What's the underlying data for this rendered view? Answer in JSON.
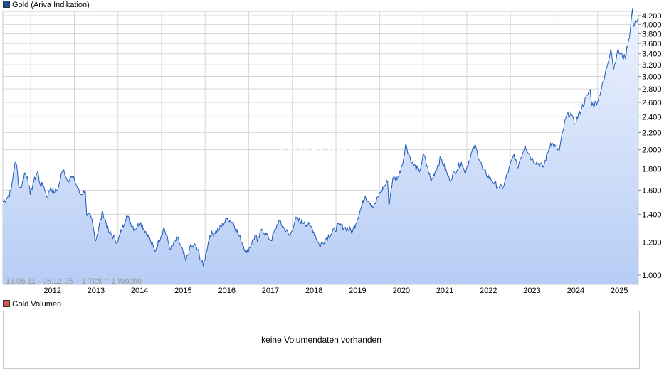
{
  "price_legend": {
    "label": "Gold (Ariva Indikation)",
    "color": "#1f4e9e"
  },
  "volume_legend": {
    "label": "Gold Volumen",
    "color": "#d9534f"
  },
  "watermark": "ARIVA.DE",
  "range_info": "13.05.11 - 08.12.25    1 Tick = 1 Woche",
  "volume_message": "keine Volumendaten vorhanden",
  "colors": {
    "line": "#1f5bb8",
    "fill_top": "#eef3fe",
    "fill_bottom": "#b7cdf5",
    "grid": "#d6d6d6"
  },
  "chart_data": {
    "type": "area",
    "scale": "log",
    "ylim": [
      950,
      4300
    ],
    "y_ticks": [
      1000,
      1200,
      1400,
      1600,
      1800,
      2000,
      2200,
      2400,
      2600,
      2800,
      3000,
      3200,
      3400,
      3600,
      3800,
      4000,
      4200
    ],
    "y_tick_labels": [
      "1.000",
      "1.200",
      "1.400",
      "1.600",
      "1.800",
      "2.000",
      "2.200",
      "2.400",
      "2.600",
      "2.800",
      "3.000",
      "3.200",
      "3.400",
      "3.600",
      "3.800",
      "4.000",
      "4.200"
    ],
    "x_tick_labels": [
      "2012",
      "2013",
      "2014",
      "2015",
      "2016",
      "2017",
      "2018",
      "2019",
      "2020",
      "2021",
      "2022",
      "2023",
      "2024",
      "2025"
    ],
    "x_range": [
      "2011-05-13",
      "2025-12-08"
    ],
    "series": [
      {
        "values": [
          [
            "2011-05-13",
            1500
          ],
          [
            "2011-06-15",
            1530
          ],
          [
            "2011-07-20",
            1590
          ],
          [
            "2011-08-10",
            1760
          ],
          [
            "2011-08-22",
            1860
          ],
          [
            "2011-09-05",
            1840
          ],
          [
            "2011-09-26",
            1620
          ],
          [
            "2011-10-20",
            1640
          ],
          [
            "2011-11-10",
            1760
          ],
          [
            "2011-12-05",
            1720
          ],
          [
            "2011-12-29",
            1560
          ],
          [
            "2012-01-20",
            1660
          ],
          [
            "2012-02-28",
            1770
          ],
          [
            "2012-03-20",
            1650
          ],
          [
            "2012-04-20",
            1640
          ],
          [
            "2012-05-16",
            1540
          ],
          [
            "2012-06-15",
            1620
          ],
          [
            "2012-07-20",
            1580
          ],
          [
            "2012-08-20",
            1620
          ],
          [
            "2012-09-20",
            1770
          ],
          [
            "2012-10-05",
            1790
          ],
          [
            "2012-11-05",
            1680
          ],
          [
            "2012-11-28",
            1730
          ],
          [
            "2013-01-02",
            1690
          ],
          [
            "2013-02-20",
            1560
          ],
          [
            "2013-04-02",
            1600
          ],
          [
            "2013-04-15",
            1390
          ],
          [
            "2013-05-20",
            1380
          ],
          [
            "2013-06-28",
            1210
          ],
          [
            "2013-08-27",
            1420
          ],
          [
            "2013-10-15",
            1270
          ],
          [
            "2013-12-30",
            1200
          ],
          [
            "2014-03-14",
            1390
          ],
          [
            "2014-05-20",
            1290
          ],
          [
            "2014-07-10",
            1340
          ],
          [
            "2014-09-30",
            1210
          ],
          [
            "2014-11-07",
            1140
          ],
          [
            "2015-01-22",
            1300
          ],
          [
            "2015-03-17",
            1150
          ],
          [
            "2015-05-15",
            1230
          ],
          [
            "2015-07-24",
            1080
          ],
          [
            "2015-08-24",
            1160
          ],
          [
            "2015-10-14",
            1180
          ],
          [
            "2015-12-17",
            1050
          ],
          [
            "2016-02-11",
            1250
          ],
          [
            "2016-04-29",
            1290
          ],
          [
            "2016-07-06",
            1370
          ],
          [
            "2016-08-20",
            1340
          ],
          [
            "2016-10-07",
            1250
          ],
          [
            "2016-12-15",
            1130
          ],
          [
            "2017-02-28",
            1250
          ],
          [
            "2017-03-14",
            1200
          ],
          [
            "2017-04-20",
            1290
          ],
          [
            "2017-07-07",
            1210
          ],
          [
            "2017-09-08",
            1350
          ],
          [
            "2017-12-12",
            1240
          ],
          [
            "2018-01-25",
            1360
          ],
          [
            "2018-04-10",
            1340
          ],
          [
            "2018-06-15",
            1300
          ],
          [
            "2018-08-16",
            1175
          ],
          [
            "2018-10-15",
            1230
          ],
          [
            "2019-01-30",
            1320
          ],
          [
            "2019-03-15",
            1300
          ],
          [
            "2019-05-20",
            1275
          ],
          [
            "2019-07-20",
            1420
          ],
          [
            "2019-09-04",
            1550
          ],
          [
            "2019-11-12",
            1455
          ],
          [
            "2020-01-08",
            1580
          ],
          [
            "2020-03-09",
            1680
          ],
          [
            "2020-03-19",
            1470
          ],
          [
            "2020-04-20",
            1700
          ],
          [
            "2020-06-10",
            1730
          ],
          [
            "2020-07-27",
            1940
          ],
          [
            "2020-08-06",
            2060
          ],
          [
            "2020-09-28",
            1860
          ],
          [
            "2020-11-30",
            1770
          ],
          [
            "2021-01-05",
            1950
          ],
          [
            "2021-03-08",
            1680
          ],
          [
            "2021-05-28",
            1910
          ],
          [
            "2021-08-09",
            1690
          ],
          [
            "2021-11-16",
            1870
          ],
          [
            "2021-12-15",
            1760
          ],
          [
            "2022-03-08",
            2050
          ],
          [
            "2022-05-16",
            1790
          ],
          [
            "2022-07-21",
            1700
          ],
          [
            "2022-09-28",
            1620
          ],
          [
            "2022-11-03",
            1630
          ],
          [
            "2023-02-01",
            1950
          ],
          [
            "2023-02-28",
            1810
          ],
          [
            "2023-05-04",
            2050
          ],
          [
            "2023-06-29",
            1900
          ],
          [
            "2023-10-05",
            1820
          ],
          [
            "2023-12-04",
            2080
          ],
          [
            "2024-02-14",
            1990
          ],
          [
            "2024-04-12",
            2400
          ],
          [
            "2024-05-20",
            2450
          ],
          [
            "2024-06-20",
            2300
          ],
          [
            "2024-08-20",
            2520
          ],
          [
            "2024-10-30",
            2790
          ],
          [
            "2024-11-14",
            2560
          ],
          [
            "2024-12-30",
            2610
          ],
          [
            "2025-02-24",
            2950
          ],
          [
            "2025-04-22",
            3500
          ],
          [
            "2025-05-15",
            3120
          ],
          [
            "2025-06-15",
            3450
          ],
          [
            "2025-08-20",
            3320
          ],
          [
            "2025-09-30",
            3850
          ],
          [
            "2025-10-20",
            4380
          ],
          [
            "2025-10-28",
            3950
          ],
          [
            "2025-11-20",
            4060
          ],
          [
            "2025-12-08",
            4200
          ]
        ]
      }
    ]
  }
}
